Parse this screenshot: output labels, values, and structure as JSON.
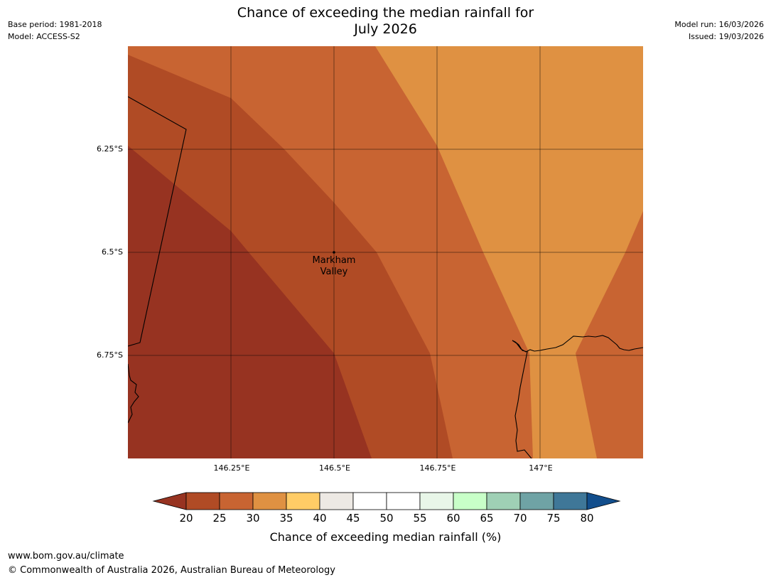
{
  "header": {
    "title_line1": "Chance of exceeding the median rainfall for",
    "title_line2": "July 2026",
    "base_period": "Base period: 1981-2018",
    "model": "Model: ACCESS-S2",
    "model_run": "Model run: 16/03/2026",
    "issued": "Issued: 19/03/2026"
  },
  "map": {
    "lat_ticks": [
      "6.25°S",
      "6.5°S",
      "6.75°S"
    ],
    "lon_ticks": [
      "146.25°E",
      "146.5°E",
      "146.75°E",
      "147°E"
    ],
    "lat_range": [
      "6.0°S",
      "7.0°S"
    ],
    "lon_range": [
      "146.0°E",
      "147.25°E"
    ],
    "place": {
      "name_line1": "Markham",
      "name_line2": "Valley",
      "lat": "6.5°S",
      "lon": "146.5°E"
    },
    "colors": {
      "band_20_25": "#973321",
      "band_25_30": "#B04B25",
      "band_30_35": "#C86432",
      "band_35_40": "#DF9142"
    }
  },
  "colorbar": {
    "title": "Chance of exceeding median rainfall (%)",
    "ticks": [
      "20",
      "25",
      "30",
      "35",
      "40",
      "45",
      "50",
      "55",
      "60",
      "65",
      "70",
      "75",
      "80"
    ],
    "colors": [
      "#973321",
      "#B04B25",
      "#C86432",
      "#DF9142",
      "#FFCC66",
      "#EDE9E4",
      "#FFFFFF",
      "#FFFFFF",
      "#E8F6E8",
      "#C8FFC8",
      "#9FD0B5",
      "#6FA3A5",
      "#3F7798",
      "#124E8C"
    ]
  },
  "footer": {
    "url": "www.bom.gov.au/climate",
    "copyright": "© Commonwealth of Australia 2026, Australian Bureau of Meteorology"
  }
}
